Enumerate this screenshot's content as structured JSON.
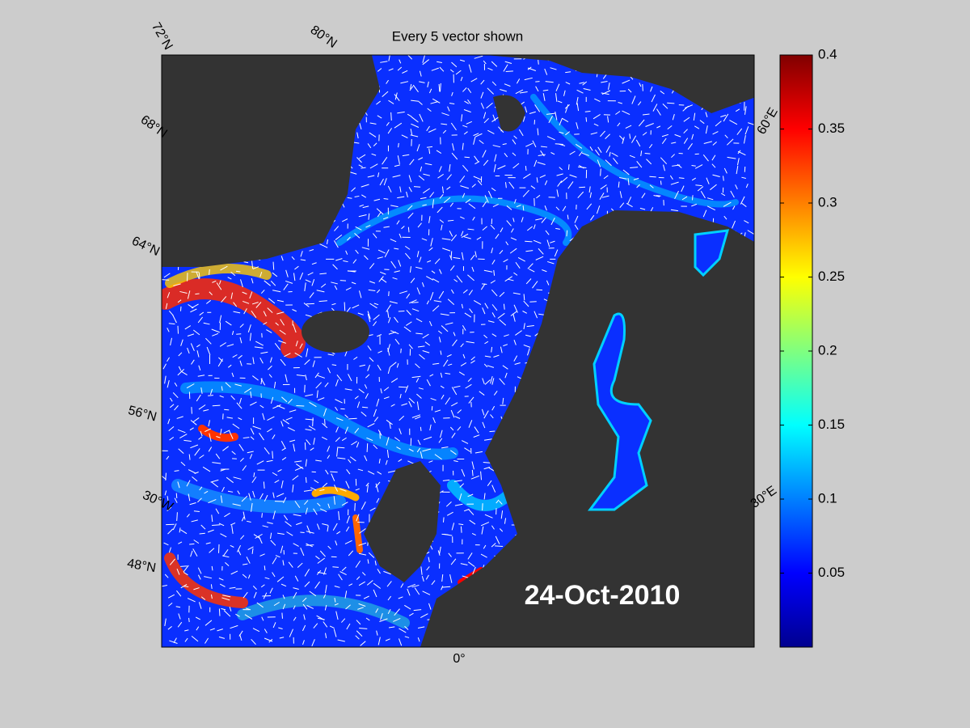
{
  "title": "Every 5 vector shown",
  "date_label": "24-Oct-2010",
  "map_labels": {
    "lat_72": "72°N",
    "lat_80": "80°N",
    "lat_68": "68°N",
    "lat_64": "64°N",
    "lat_56": "56°N",
    "lon_30w": "30°W",
    "lat_48": "48°N",
    "lon_0": "0°",
    "lon_30e": "30°E",
    "lon_60e": "60°E"
  },
  "colorbar": {
    "colormap": "jet",
    "clim": [
      0,
      0.4
    ],
    "ticks": [
      0.05,
      0.1,
      0.15,
      0.2,
      0.25,
      0.3,
      0.35,
      0.4
    ]
  }
}
